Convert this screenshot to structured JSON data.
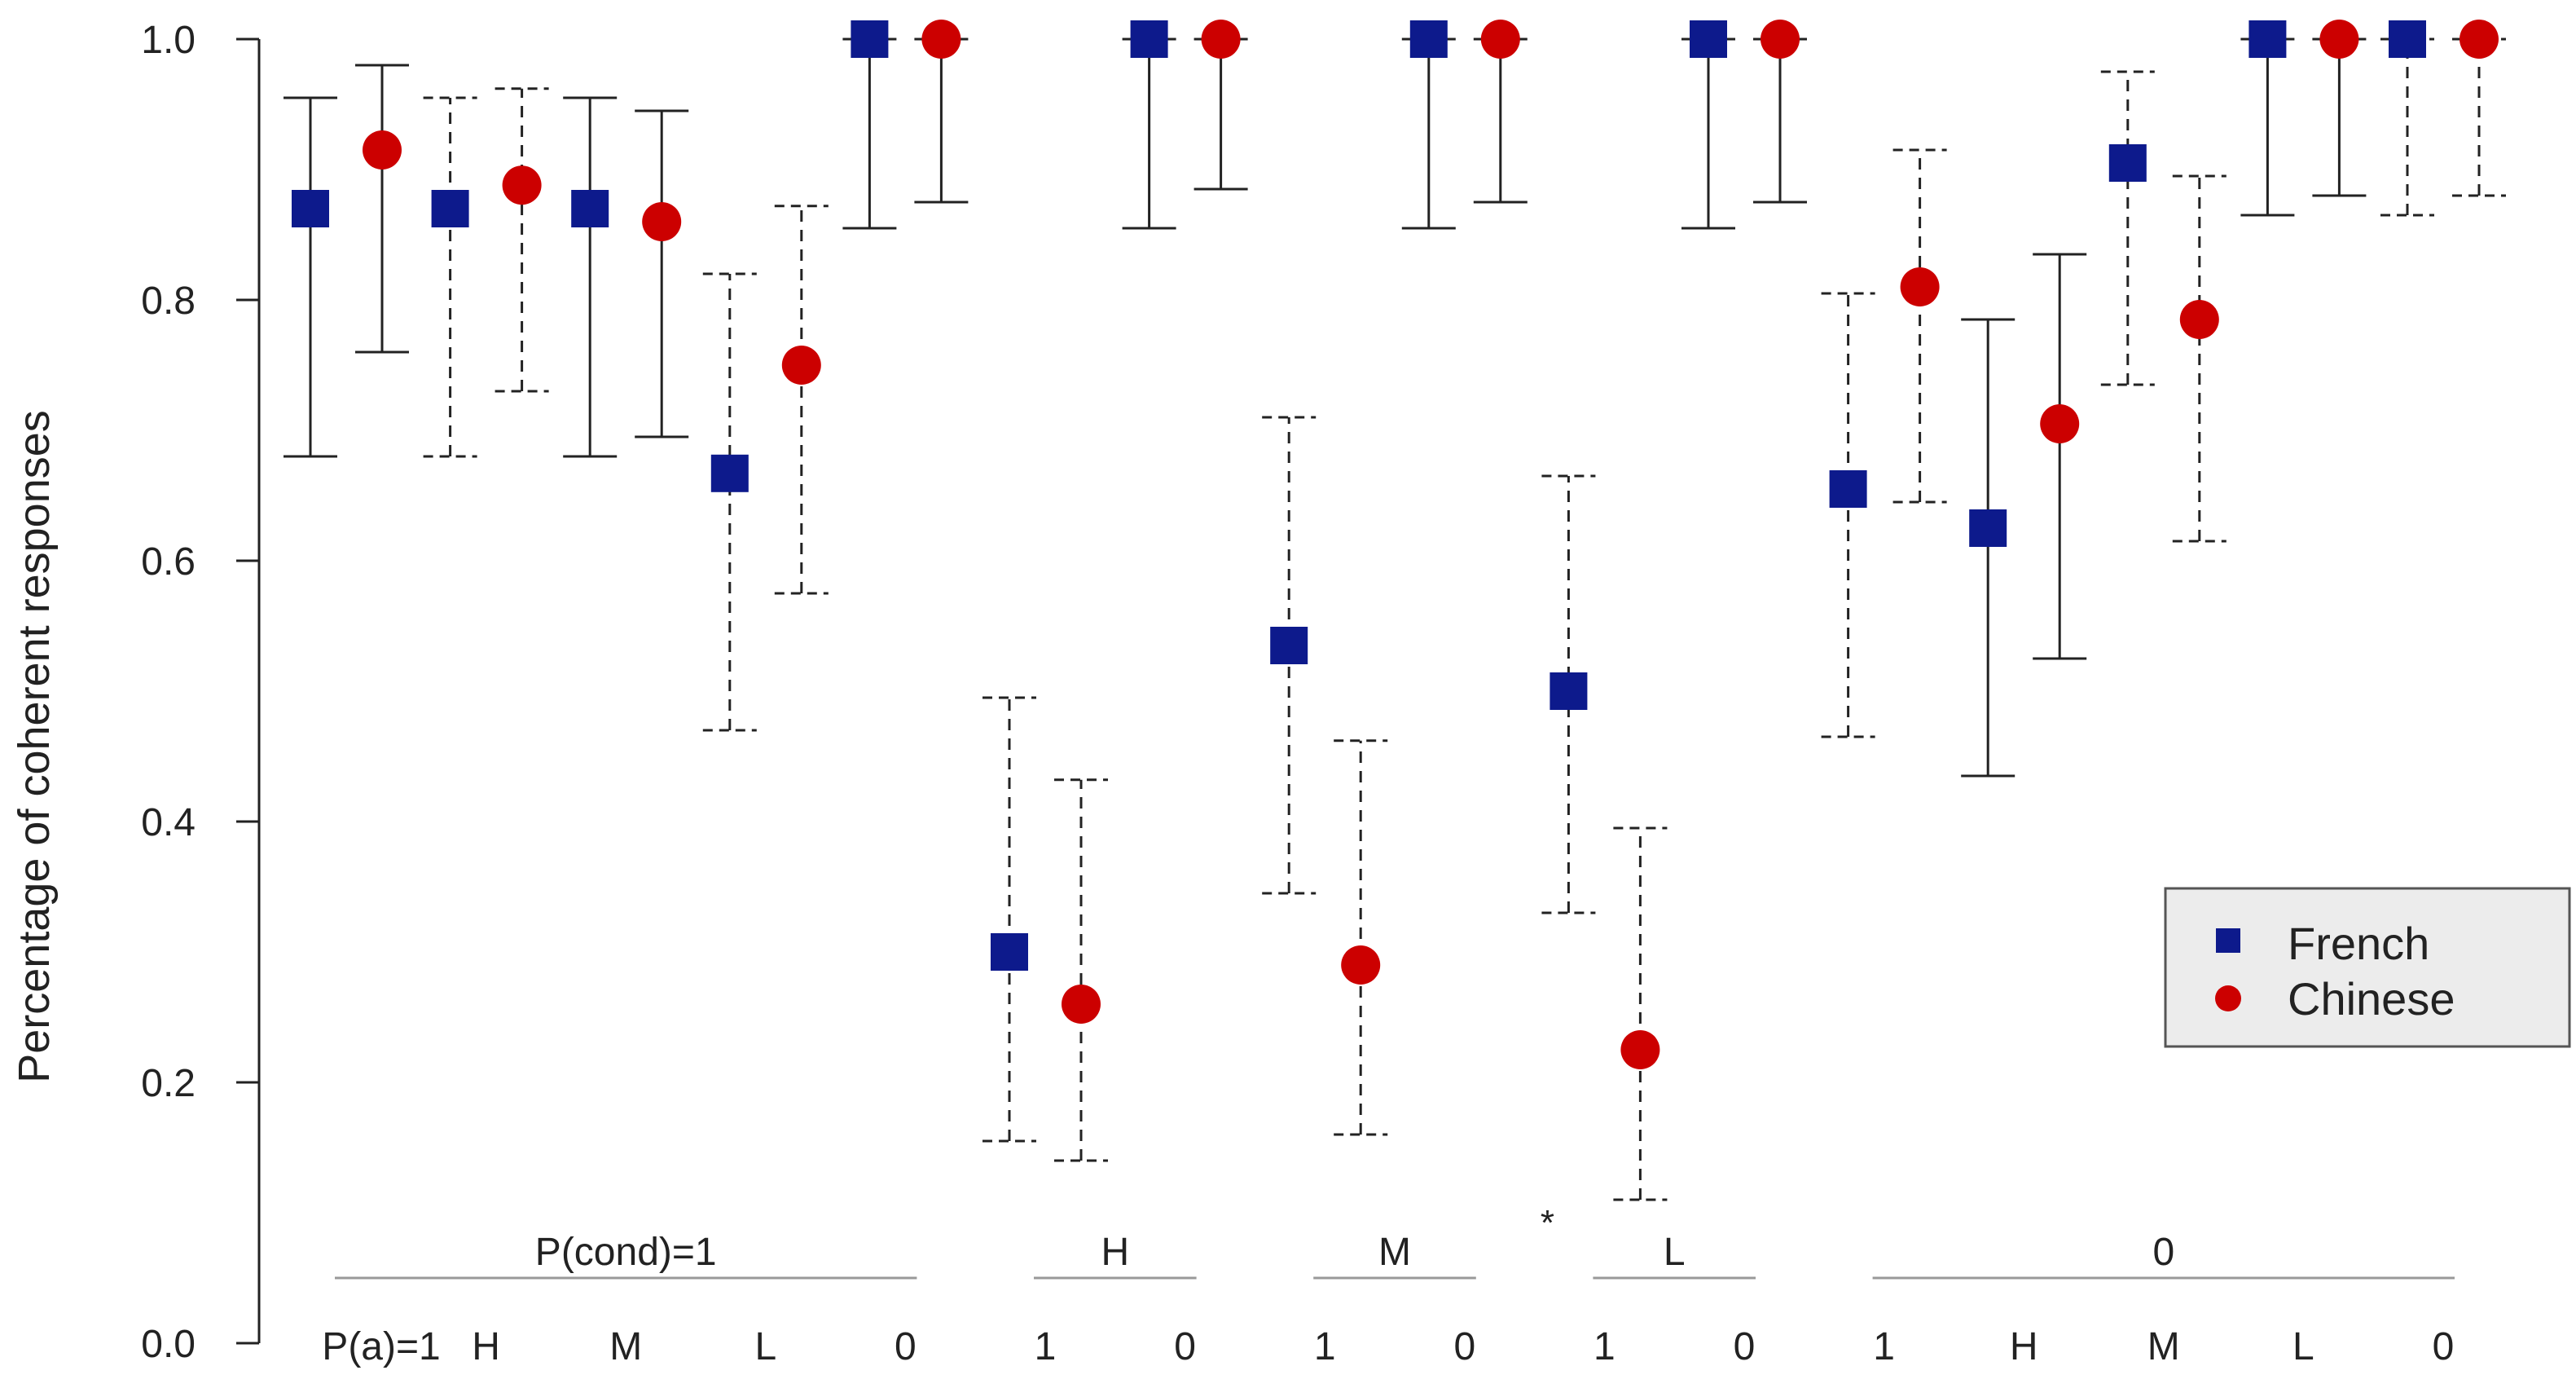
{
  "chart_data": {
    "type": "scatter",
    "title": "",
    "xlabel": "",
    "ylabel": "Percentage of coherent responses",
    "ylim": [
      0,
      1
    ],
    "y_ticks": [
      "0.0",
      "0.2",
      "0.4",
      "0.6",
      "0.8",
      "1.0"
    ],
    "grid": false,
    "legend_position": "right",
    "series": [
      {
        "name": "French",
        "marker": "square",
        "color": "#0d1a8c",
        "values": [
          0.87,
          0.87,
          0.87,
          0.667,
          1.0,
          0.3,
          1.0,
          0.535,
          1.0,
          0.5,
          1.0,
          0.655,
          0.625,
          0.905,
          1.0,
          1.0
        ],
        "ci_low": [
          0.68,
          0.68,
          0.68,
          0.47,
          0.855,
          0.155,
          0.855,
          0.345,
          0.855,
          0.33,
          0.855,
          0.465,
          0.435,
          0.735,
          0.865,
          0.865
        ],
        "ci_high": [
          0.955,
          0.955,
          0.955,
          0.82,
          1.0,
          0.495,
          1.0,
          0.71,
          1.0,
          0.665,
          1.0,
          0.805,
          0.785,
          0.975,
          1.0,
          1.0
        ],
        "linestyle": [
          "solid",
          "dashed",
          "solid",
          "dashed",
          "solid",
          "dashed",
          "solid",
          "dashed",
          "solid",
          "dashed",
          "solid",
          "dashed",
          "solid",
          "dashed",
          "solid",
          "dashed"
        ]
      },
      {
        "name": "Chinese",
        "marker": "circle",
        "color": "#cc0000",
        "values": [
          0.915,
          0.888,
          0.86,
          0.75,
          1.0,
          0.26,
          1.0,
          0.29,
          1.0,
          0.225,
          1.0,
          0.81,
          0.705,
          0.785,
          1.0,
          1.0
        ],
        "ci_low": [
          0.76,
          0.73,
          0.695,
          0.575,
          0.875,
          0.14,
          0.885,
          0.16,
          0.875,
          0.11,
          0.875,
          0.645,
          0.525,
          0.615,
          0.88,
          0.88
        ],
        "ci_high": [
          0.98,
          0.962,
          0.945,
          0.872,
          1.0,
          0.432,
          1.0,
          0.462,
          1.0,
          0.395,
          1.0,
          0.915,
          0.835,
          0.895,
          1.0,
          1.0
        ],
        "linestyle": [
          "solid",
          "dashed",
          "solid",
          "dashed",
          "solid",
          "dashed",
          "solid",
          "dashed",
          "solid",
          "dashed",
          "solid",
          "dashed",
          "solid",
          "dashed",
          "solid",
          "dashed"
        ]
      }
    ],
    "categories": [
      "P(a)=1",
      "H",
      "M",
      "L",
      "0",
      "1",
      "0",
      "1",
      "0",
      "1",
      "0",
      "1",
      "H",
      "M",
      "L",
      "0"
    ],
    "groups": [
      {
        "label": "P(cond)=1",
        "from": 0,
        "to": 4
      },
      {
        "label": "H",
        "from": 5,
        "to": 6
      },
      {
        "label": "M",
        "from": 7,
        "to": 8
      },
      {
        "label": "L",
        "from": 9,
        "to": 10
      },
      {
        "label": "0",
        "from": 11,
        "to": 15
      }
    ],
    "annotations": [
      {
        "text": "*",
        "near_category": 9
      }
    ]
  },
  "colors": {
    "french": "#0d1a8c",
    "chinese": "#cc0000",
    "legend_bg": "#ececec",
    "legend_border": "#555555"
  }
}
